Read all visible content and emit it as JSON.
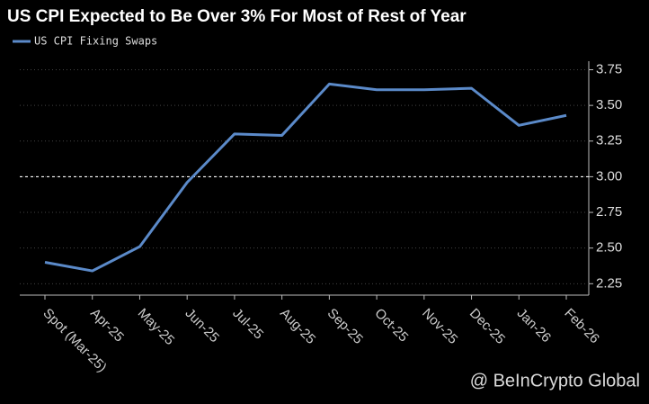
{
  "chart_data": {
    "type": "line",
    "title": "US CPI Expected to Be Over 3% For Most of Rest of Year",
    "categories": [
      "Spot (Mar-25)",
      "Apr-25",
      "May-25",
      "Jun-25",
      "Jul-25",
      "Aug-25",
      "Sep-25",
      "Oct-25",
      "Nov-25",
      "Dec-25",
      "Jan-26",
      "Feb-26"
    ],
    "series": [
      {
        "name": "US CPI Fixing Swaps",
        "color": "#5b8ac9",
        "values": [
          2.4,
          2.34,
          2.51,
          2.96,
          3.3,
          3.29,
          3.65,
          3.61,
          3.61,
          3.62,
          3.36,
          3.43
        ]
      }
    ],
    "ylim": [
      2.17,
      3.81
    ],
    "yticks": [
      {
        "value": 2.25,
        "label": "2.25"
      },
      {
        "value": 2.5,
        "label": "2.50"
      },
      {
        "value": 2.75,
        "label": "2.75"
      },
      {
        "value": 3,
        "label": "3.00"
      },
      {
        "value": 3.25,
        "label": "3.25"
      },
      {
        "value": 3.5,
        "label": "3.50"
      },
      {
        "value": 3.75,
        "label": "3.75"
      }
    ],
    "reference_line": 3,
    "grid": true,
    "y_axis_side": "right",
    "watermark": "@ BeInCrypto Global"
  }
}
